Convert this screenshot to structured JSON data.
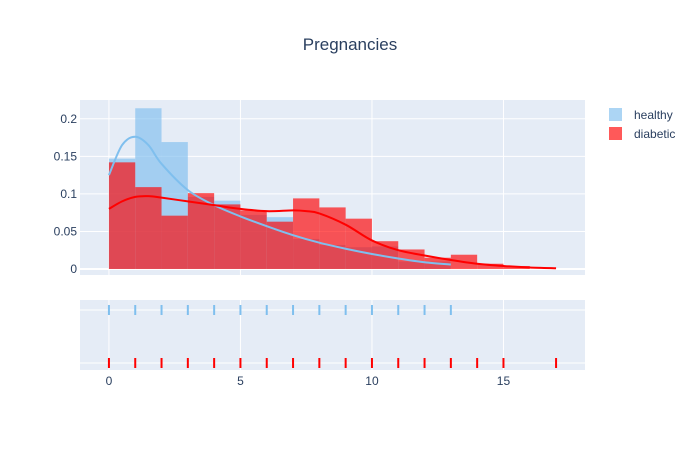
{
  "chart_data": {
    "type": "histogram",
    "title": "Pregnancies",
    "xlabel": "",
    "ylabel": "",
    "xlim": [
      -1.1,
      18.1
    ],
    "ylim": [
      -0.008,
      0.225
    ],
    "xticks": [
      0,
      5,
      10,
      15
    ],
    "yticks": [
      0,
      0.05,
      0.1,
      0.15,
      0.2
    ],
    "ytick_labels": [
      "0",
      "0.05",
      "0.1",
      "0.15",
      "0.2"
    ],
    "legend_position": "top-right",
    "grid": true,
    "barmode": "overlay",
    "series": [
      {
        "name": "healthy",
        "color": "#7fbfee",
        "bin_width": 1,
        "bins_start": [
          0,
          1,
          2,
          3,
          4,
          5,
          6,
          7,
          8,
          9,
          10,
          11,
          12
        ],
        "density": [
          0.147,
          0.214,
          0.169,
          0.096,
          0.091,
          0.072,
          0.069,
          0.04,
          0.032,
          0.029,
          0.03,
          0.01,
          0.01
        ],
        "kde_x": [
          0,
          0.5,
          1,
          1.5,
          2,
          3,
          4,
          5,
          6,
          7,
          8,
          9,
          10,
          11,
          12,
          13
        ],
        "kde_y": [
          0.125,
          0.165,
          0.176,
          0.165,
          0.14,
          0.105,
          0.085,
          0.07,
          0.057,
          0.045,
          0.035,
          0.027,
          0.02,
          0.014,
          0.009,
          0.006
        ],
        "rug": [
          0,
          1,
          2,
          3,
          4,
          5,
          6,
          7,
          8,
          9,
          10,
          11,
          12,
          13
        ]
      },
      {
        "name": "diabetic",
        "color": "#ff0000",
        "bin_width": 1,
        "bins_start": [
          0,
          1,
          2,
          3,
          4,
          5,
          6,
          7,
          8,
          9,
          10,
          11,
          12,
          13,
          14,
          15
        ],
        "density": [
          0.142,
          0.109,
          0.071,
          0.101,
          0.086,
          0.078,
          0.063,
          0.094,
          0.082,
          0.067,
          0.037,
          0.026,
          0.015,
          0.019,
          0.007,
          0.004
        ],
        "kde_x": [
          0,
          0.5,
          1,
          1.5,
          2,
          3,
          4,
          5,
          6,
          7,
          7.5,
          8,
          9,
          10,
          11,
          12,
          13,
          14,
          15,
          16,
          17
        ],
        "kde_y": [
          0.08,
          0.09,
          0.096,
          0.097,
          0.095,
          0.09,
          0.085,
          0.08,
          0.077,
          0.078,
          0.077,
          0.074,
          0.059,
          0.038,
          0.025,
          0.018,
          0.012,
          0.007,
          0.004,
          0.002,
          0.001
        ],
        "rug": [
          0,
          1,
          2,
          3,
          4,
          5,
          6,
          7,
          8,
          9,
          10,
          11,
          12,
          13,
          14,
          15,
          17
        ]
      }
    ]
  }
}
